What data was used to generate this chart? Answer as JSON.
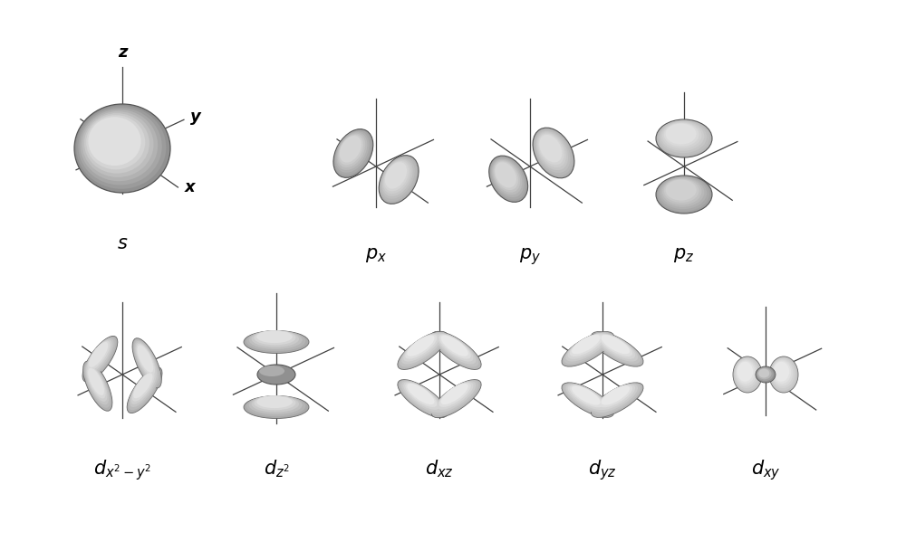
{
  "background_color": "#ffffff",
  "axis_color": "#404040",
  "text_color": "#000000",
  "labels": {
    "s": "$s$",
    "px": "$p_x$",
    "py": "$p_y$",
    "pz": "$p_z$",
    "dx2y2": "$d_{x^2-y^2}$",
    "dz2": "$d_{z^2}$",
    "dxz": "$d_{xz}$",
    "dyz": "$d_{yz}$",
    "dxy": "$d_{xy}$"
  },
  "label_fontsize": 15,
  "axis_label_fontsize": 13,
  "figsize": [
    10.0,
    6.09
  ]
}
